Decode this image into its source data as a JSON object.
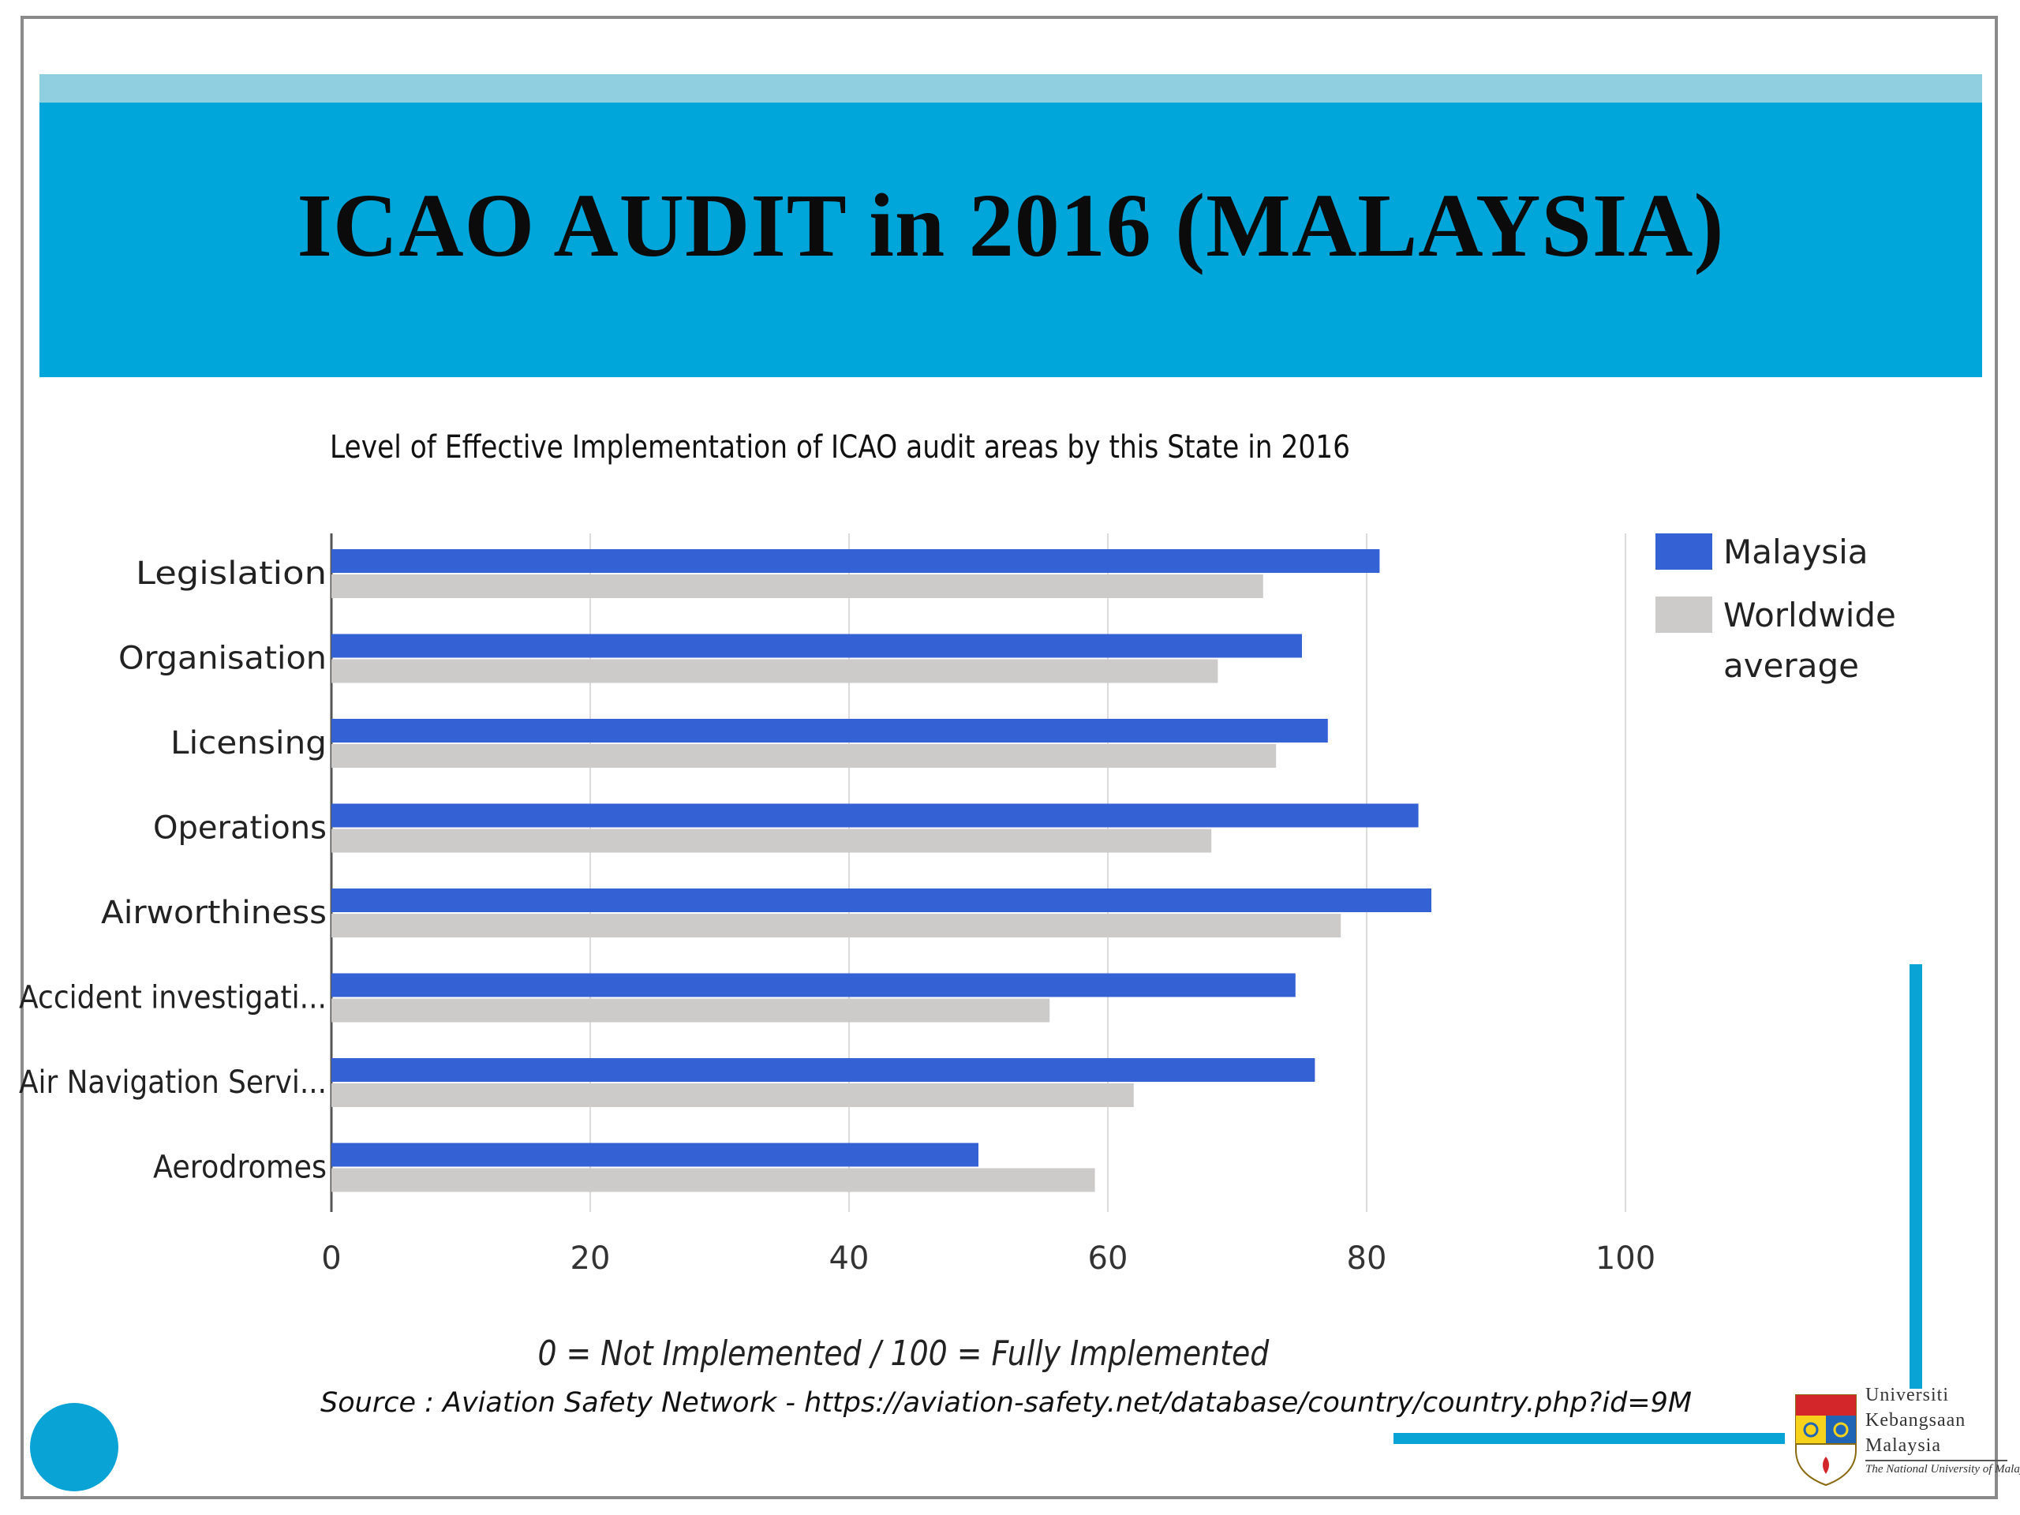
{
  "slide": {
    "title": "ICAO AUDIT in 2016 (MALAYSIA)",
    "source": "Source : Aviation  Safety Network  - https://aviation-safety.net/database/country/country.php?id=9M"
  },
  "logo": {
    "line1": "Universiti",
    "line2": "Kebangsaan",
    "line3": "Malaysia",
    "subtitle": "The National University of Malaysia"
  },
  "colors": {
    "title_band": "#00a5d9",
    "malaysia": "#3461d4",
    "worldwide": "#cdcaca",
    "accent": "#0aa3d6"
  },
  "chart_data": {
    "type": "bar",
    "orientation": "horizontal",
    "title": "Level of Effective Implementation of ICAO audit areas by this State in 2016",
    "xlabel": "0 = Not Implemented  /  100 = Fully Implemented",
    "categories": [
      "Legislation",
      "Organisation",
      "Licensing",
      "Operations",
      "Airworthiness",
      "Accident investigati...",
      "Air Navigation Servi...",
      "Aerodromes"
    ],
    "series": [
      {
        "name": "Malaysia",
        "values": [
          81,
          75,
          77,
          84,
          85,
          74.5,
          76,
          50
        ]
      },
      {
        "name": "Worldwide average",
        "values": [
          72,
          68.5,
          73,
          68,
          78,
          55.5,
          62,
          59
        ]
      }
    ],
    "xlim": [
      0,
      100
    ],
    "xticks": [
      0,
      20,
      40,
      60,
      80,
      100
    ],
    "grid": true,
    "legend": "right"
  }
}
